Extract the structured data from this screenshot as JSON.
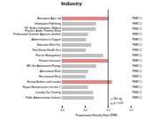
{
  "chart_data": {
    "type": "bar",
    "orientation": "horizontal",
    "title": "Industry",
    "xlabel": "Proportionate Mortality Ratio (PMR)",
    "categories": [
      "Aerospace Agric ind",
      "Information Publishing",
      "FS: Banks Institutions, Medical Practice, Audio Theatres Elsey",
      "Professional Scientific Agencies whether",
      "Administrative to Support",
      "Education Elem Sec",
      "Real Estate Health Serv",
      "Plan for Management",
      "Finance Insurance",
      "NPL Ent Amusement Photogr",
      "Amusement Restr",
      "Recreational Restr",
      "Beauty Barbers and Laundry",
      "Repair Manufacturers not else C",
      "Laundry Dry Cleaning",
      "Public Administration Defense"
    ],
    "values": [
      1.025,
      0.75,
      0.74,
      0.57,
      0.53,
      0.64,
      0.52,
      0.9,
      1.004,
      0.75,
      0.57,
      0.52,
      1.09,
      0.57,
      0.68,
      0.7
    ],
    "colors": [
      "#f08080",
      "#c0c0c0",
      "#c0c0c0",
      "#c0c0c0",
      "#c0c0c0",
      "#c0c0c0",
      "#c0c0c0",
      "#c0c0c0",
      "#f08080",
      "#c0c0c0",
      "#c0c0c0",
      "#c0c0c0",
      "#f08080",
      "#c0c0c0",
      "#c0c0c0",
      "#c0c0c0"
    ],
    "bar_notes": [
      "PMR CI",
      "PMR CI",
      "PMR CI",
      "PMR CI",
      "PMR CI",
      "PMR CI",
      "PMR CI",
      "PMR CI",
      "PMR CI",
      "PMR CI",
      "PMR CI",
      "PMR CI",
      "PMR CI",
      "PMR CI",
      "PMR CI",
      "PMR CI"
    ],
    "reference_line": 1.0,
    "legend": "lower right",
    "legend_entries": [
      {
        "name": "Not sig.",
        "color": "#c0c0c0"
      },
      {
        "name": "p < 0.05",
        "color": "#f08080"
      }
    ],
    "xlim": [
      0,
      1.5
    ],
    "xticks": [
      {
        "value": 0,
        "label": "0.0"
      },
      0.5,
      {
        "value": 1,
        "label": "1.0"
      },
      1.5
    ],
    "grid": false
  }
}
